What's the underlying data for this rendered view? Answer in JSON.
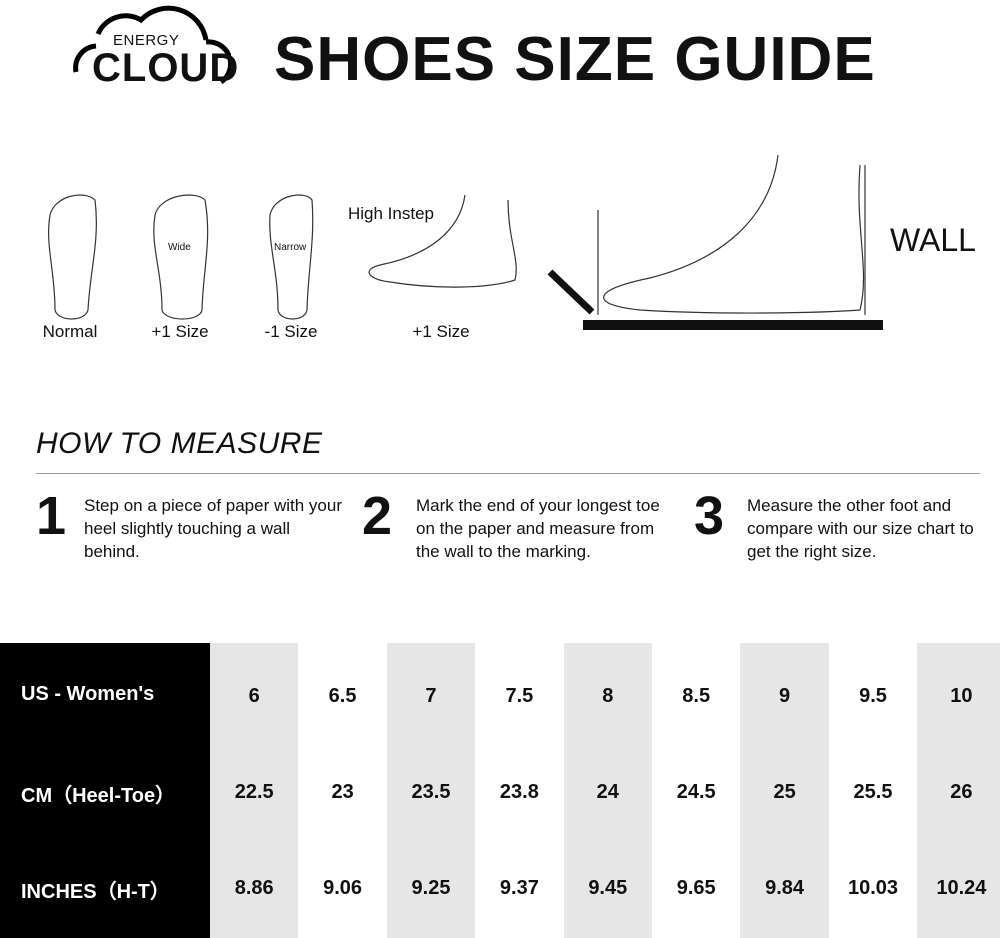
{
  "logo": {
    "energy": "ENERGY",
    "cloud": "CLOUD"
  },
  "title": "SHOES SIZE GUIDE",
  "feet": [
    {
      "label": "Normal"
    },
    {
      "label": "+1 Size",
      "note": "Wide"
    },
    {
      "label": "-1 Size",
      "note": "Narrow"
    },
    {
      "label": "+1 Size",
      "note": "High Instep"
    }
  ],
  "wall_label": "WALL",
  "how_to": {
    "heading": "HOW TO MEASURE",
    "steps": [
      {
        "num": "1",
        "text": "Step on a piece of paper with your heel slightly touching a wall behind."
      },
      {
        "num": "2",
        "text": "Mark the end of your longest toe on the paper and measure from the wall to the marking."
      },
      {
        "num": "3",
        "text": "Measure the other foot and compare with our size chart to get the right size."
      }
    ]
  },
  "size_chart": {
    "row_headers": [
      "US - Women's",
      "CM（Heel-Toe）",
      "INCHES（H-T）"
    ],
    "columns": [
      {
        "us": "6",
        "cm": "22.5",
        "in": "8.86"
      },
      {
        "us": "6.5",
        "cm": "23",
        "in": "9.06"
      },
      {
        "us": "7",
        "cm": "23.5",
        "in": "9.25"
      },
      {
        "us": "7.5",
        "cm": "23.8",
        "in": "9.37"
      },
      {
        "us": "8",
        "cm": "24",
        "in": "9.45"
      },
      {
        "us": "8.5",
        "cm": "24.5",
        "in": "9.65"
      },
      {
        "us": "9",
        "cm": "25",
        "in": "9.84"
      },
      {
        "us": "9.5",
        "cm": "25.5",
        "in": "10.03"
      },
      {
        "us": "10",
        "cm": "26",
        "in": "10.24"
      }
    ],
    "colors": {
      "header_bg": "#000000",
      "shaded_col": "#e6e6e6"
    }
  }
}
